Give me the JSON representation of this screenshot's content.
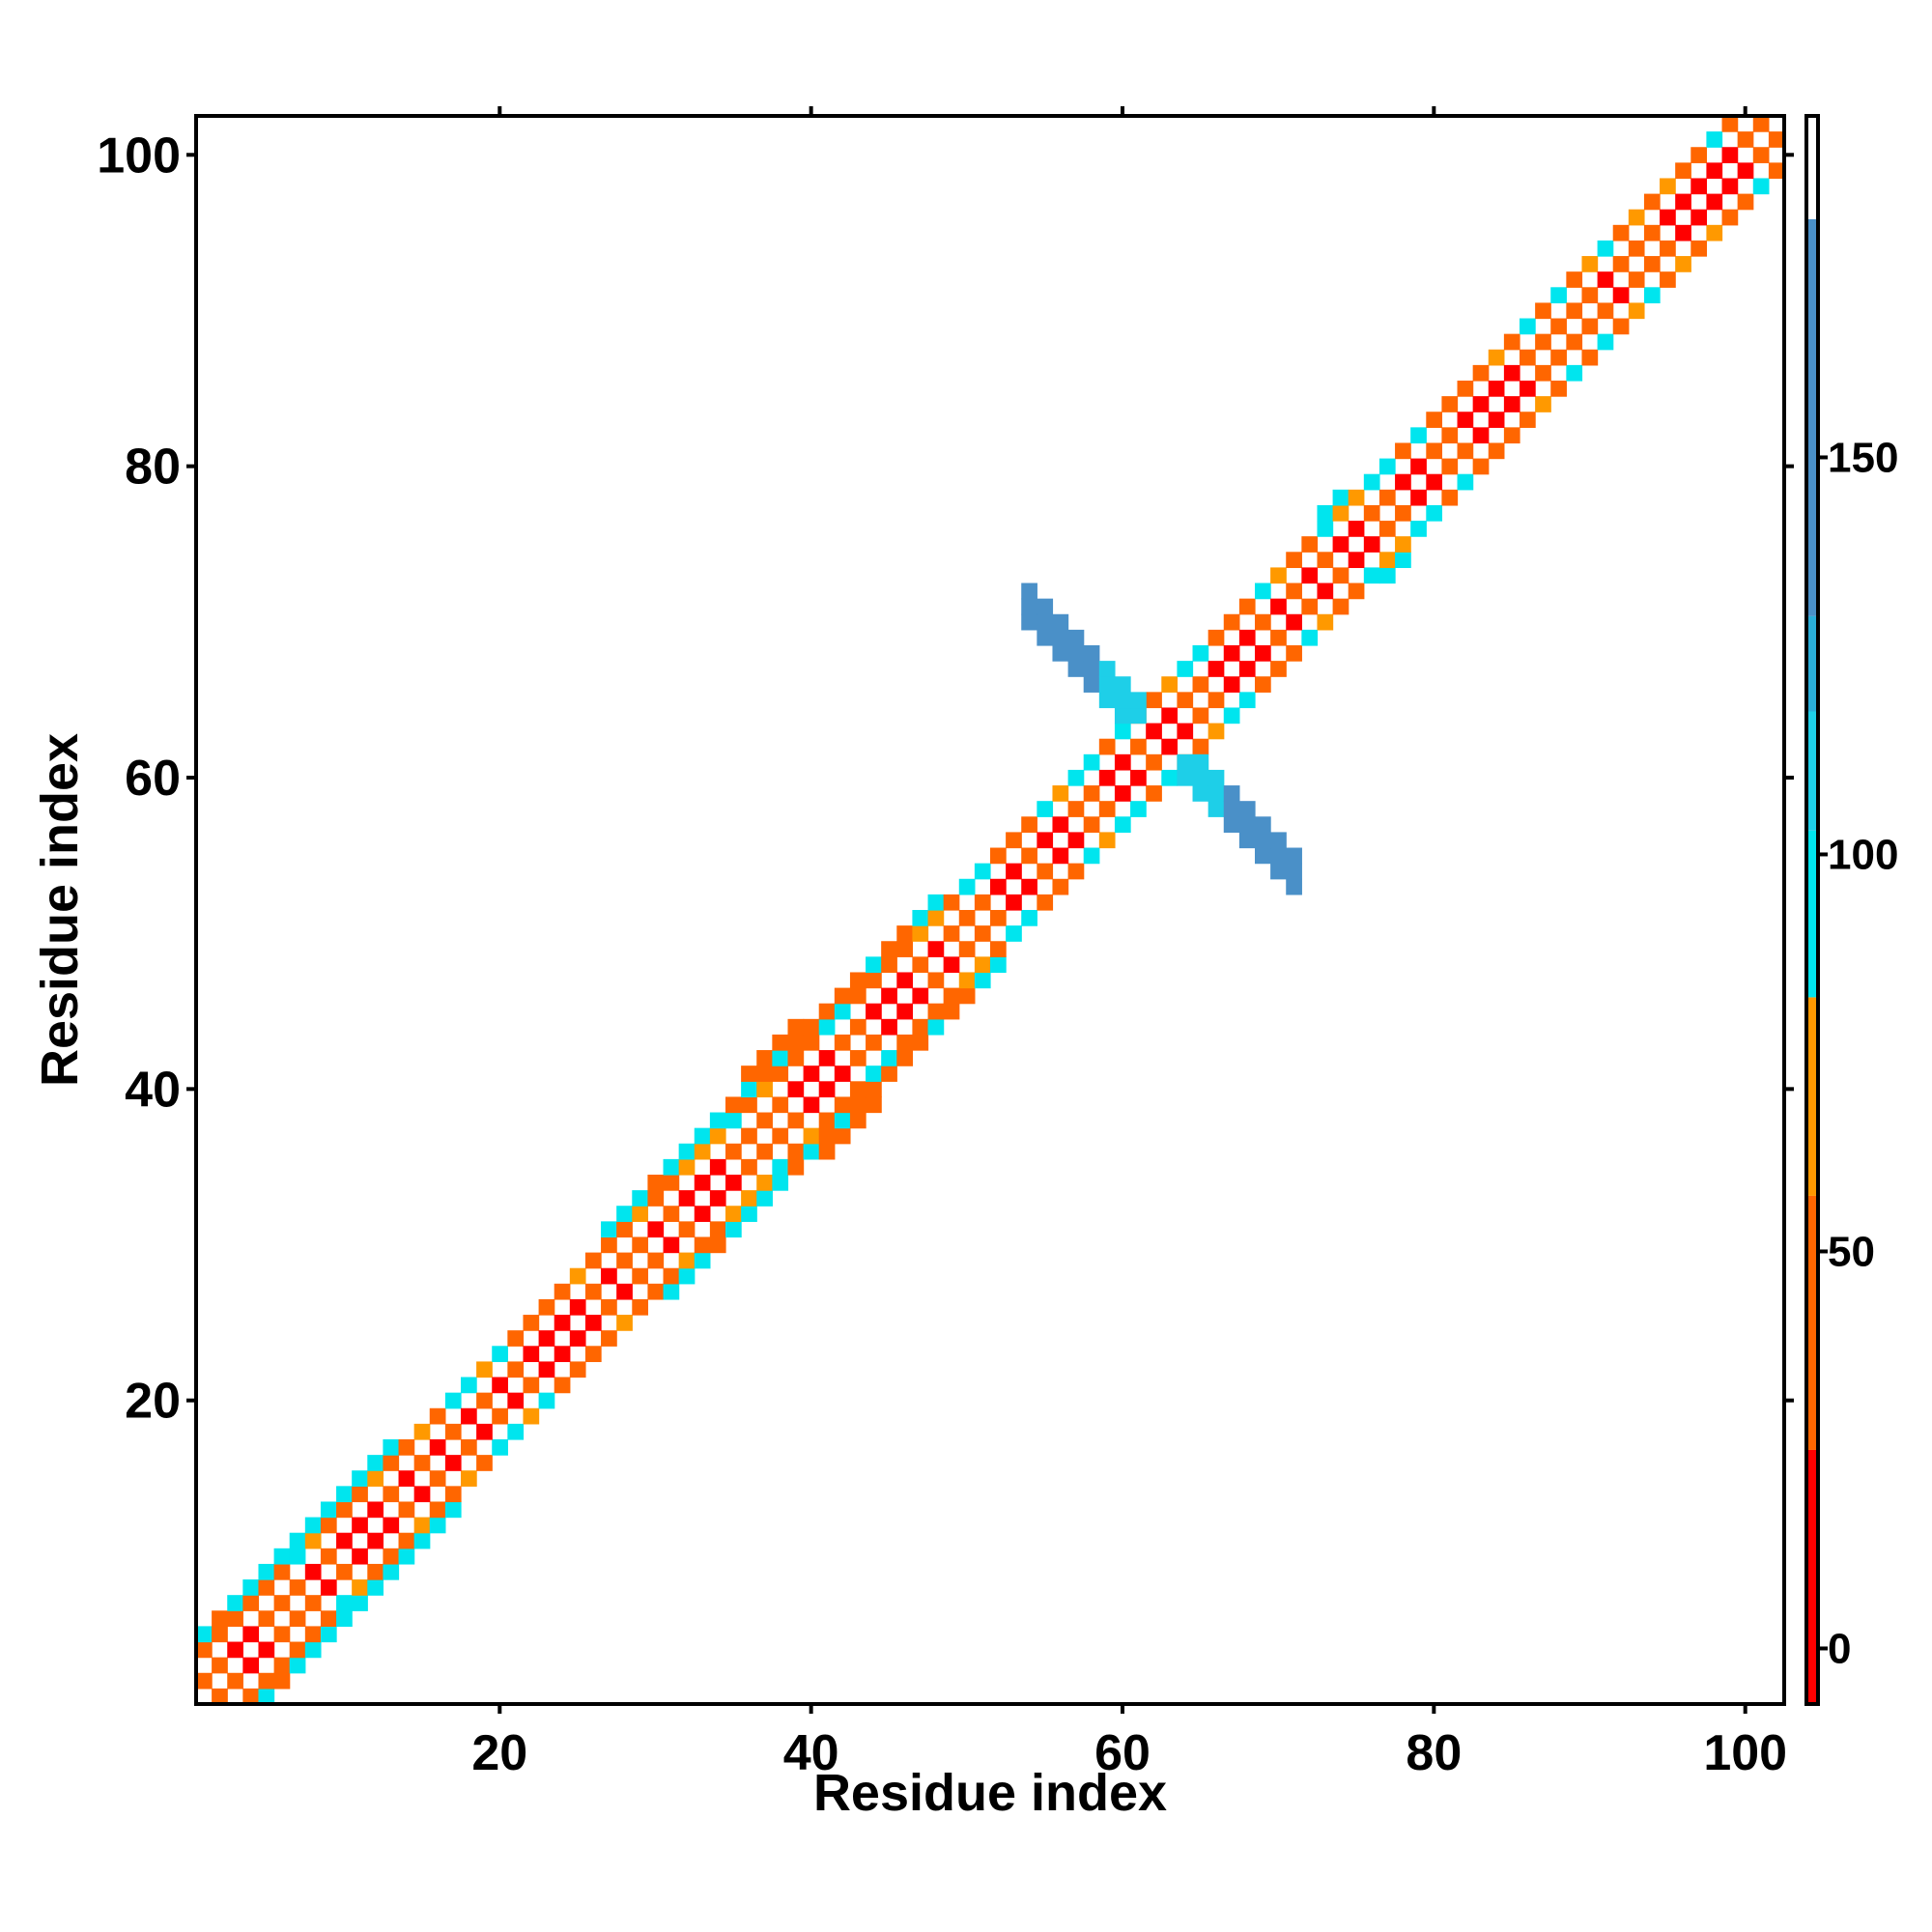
{
  "chart_data": {
    "type": "heatmap",
    "title": "",
    "xlabel": "Residue index",
    "ylabel": "Residue index",
    "xlim": [
      1,
      102
    ],
    "ylim": [
      1,
      102
    ],
    "x_ticks": [
      20,
      40,
      60,
      80,
      100
    ],
    "y_ticks": [
      20,
      40,
      60,
      80,
      100
    ],
    "colorbar": {
      "ticks": [
        0,
        50,
        100,
        150
      ],
      "range": [
        -7,
        193
      ],
      "bands": [
        {
          "from": -7,
          "to": 25,
          "color": "#ff0000"
        },
        {
          "from": 25,
          "to": 57,
          "color": "#ff6600"
        },
        {
          "from": 57,
          "to": 82,
          "color": "#ff9900"
        },
        {
          "from": 82,
          "to": 103,
          "color": "#00e5ee"
        },
        {
          "from": 103,
          "to": 118,
          "color": "#1ecfe8"
        },
        {
          "from": 118,
          "to": 130,
          "color": "#2aaed9"
        },
        {
          "from": 130,
          "to": 180,
          "color": "#4a90c8"
        },
        {
          "from": 180,
          "to": 193,
          "color": "#ffffff"
        }
      ]
    },
    "band_profile": {
      "segments": [
        {
          "from": 1,
          "to": 11,
          "half_width": 4
        },
        {
          "from": 11,
          "to": 17,
          "half_width": 4
        },
        {
          "from": 17,
          "to": 26,
          "half_width": 3
        },
        {
          "from": 26,
          "to": 35,
          "half_width": 4
        },
        {
          "from": 35,
          "to": 44,
          "half_width": 5
        },
        {
          "from": 44,
          "to": 52,
          "half_width": 4
        },
        {
          "from": 52,
          "to": 72,
          "half_width": 3
        },
        {
          "from": 72,
          "to": 78,
          "half_width": 4
        },
        {
          "from": 78,
          "to": 102,
          "half_width": 3
        }
      ]
    },
    "antiparallel_contact": {
      "center": 62.5,
      "residues": [
        54,
        71
      ],
      "value": 150
    }
  }
}
